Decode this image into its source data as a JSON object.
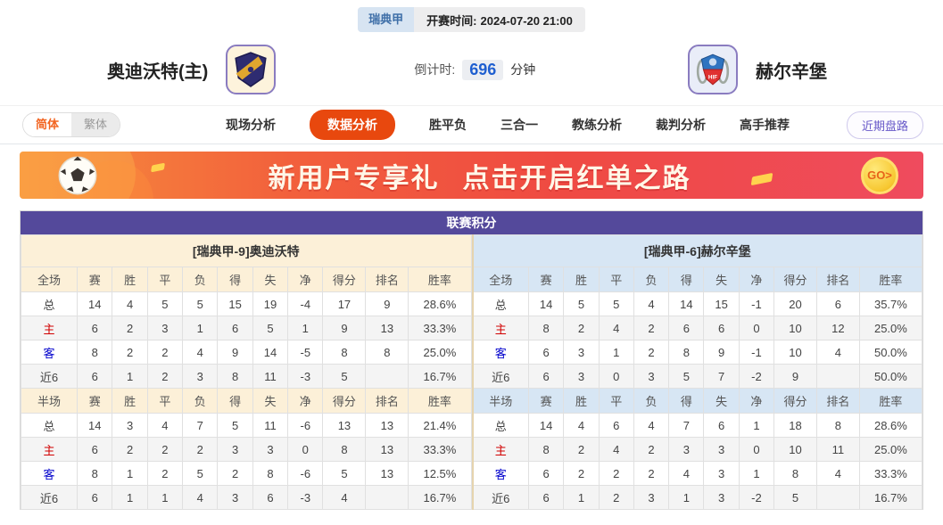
{
  "header": {
    "league": "瑞典甲",
    "kickoff_label": "开赛时间:",
    "kickoff_time": "2024-07-20 21:00",
    "home_team": "奥迪沃特(主)",
    "away_team": "赫尔辛堡",
    "countdown_label": "倒计时:",
    "countdown_value": "696",
    "countdown_unit": "分钟"
  },
  "nav": {
    "lang_simplified": "简体",
    "lang_traditional": "繁体",
    "tabs": [
      "现场分析",
      "数据分析",
      "胜平负",
      "三合一",
      "教练分析",
      "裁判分析",
      "高手推荐"
    ],
    "active_tab": "数据分析",
    "recent_button": "近期盘路"
  },
  "banner": {
    "text_left": "新用户专享礼",
    "text_right": "点击开启红单之路",
    "go_label": "GO>"
  },
  "colors": {
    "accent_orange": "#e8480e",
    "title_purple": "#54499b",
    "home_cream": "#fcf0d8",
    "away_blue": "#d7e6f4",
    "countdown_blue": "#1f5fd0"
  },
  "table": {
    "title": "联赛积分",
    "col_widths": [
      "12.5%",
      "7.8%",
      "7.8%",
      "7.8%",
      "7.8%",
      "7.8%",
      "7.8%",
      "7.8%",
      "9.5%",
      "9.5%",
      ""
    ],
    "panels": [
      {
        "side": "home",
        "header": "[瑞典甲-9]奥迪沃特",
        "sections": [
          {
            "columns": [
              "全场",
              "赛",
              "胜",
              "平",
              "负",
              "得",
              "失",
              "净",
              "得分",
              "排名",
              "胜率"
            ],
            "rows": [
              [
                "总",
                "14",
                "4",
                "5",
                "5",
                "15",
                "19",
                "-4",
                "17",
                "9",
                "28.6%"
              ],
              [
                "主",
                "6",
                "2",
                "3",
                "1",
                "6",
                "5",
                "1",
                "9",
                "13",
                "33.3%"
              ],
              [
                "客",
                "8",
                "2",
                "2",
                "4",
                "9",
                "14",
                "-5",
                "8",
                "8",
                "25.0%"
              ],
              [
                "近6",
                "6",
                "1",
                "2",
                "3",
                "8",
                "11",
                "-3",
                "5",
                "",
                "16.7%"
              ]
            ]
          },
          {
            "columns": [
              "半场",
              "赛",
              "胜",
              "平",
              "负",
              "得",
              "失",
              "净",
              "得分",
              "排名",
              "胜率"
            ],
            "rows": [
              [
                "总",
                "14",
                "3",
                "4",
                "7",
                "5",
                "11",
                "-6",
                "13",
                "13",
                "21.4%"
              ],
              [
                "主",
                "6",
                "2",
                "2",
                "2",
                "3",
                "3",
                "0",
                "8",
                "13",
                "33.3%"
              ],
              [
                "客",
                "8",
                "1",
                "2",
                "5",
                "2",
                "8",
                "-6",
                "5",
                "13",
                "12.5%"
              ],
              [
                "近6",
                "6",
                "1",
                "1",
                "4",
                "3",
                "6",
                "-3",
                "4",
                "",
                "16.7%"
              ]
            ]
          }
        ]
      },
      {
        "side": "away",
        "header": "[瑞典甲-6]赫尔辛堡",
        "sections": [
          {
            "columns": [
              "全场",
              "赛",
              "胜",
              "平",
              "负",
              "得",
              "失",
              "净",
              "得分",
              "排名",
              "胜率"
            ],
            "rows": [
              [
                "总",
                "14",
                "5",
                "5",
                "4",
                "14",
                "15",
                "-1",
                "20",
                "6",
                "35.7%"
              ],
              [
                "主",
                "8",
                "2",
                "4",
                "2",
                "6",
                "6",
                "0",
                "10",
                "12",
                "25.0%"
              ],
              [
                "客",
                "6",
                "3",
                "1",
                "2",
                "8",
                "9",
                "-1",
                "10",
                "4",
                "50.0%"
              ],
              [
                "近6",
                "6",
                "3",
                "0",
                "3",
                "5",
                "7",
                "-2",
                "9",
                "",
                "50.0%"
              ]
            ]
          },
          {
            "columns": [
              "半场",
              "赛",
              "胜",
              "平",
              "负",
              "得",
              "失",
              "净",
              "得分",
              "排名",
              "胜率"
            ],
            "rows": [
              [
                "总",
                "14",
                "4",
                "6",
                "4",
                "7",
                "6",
                "1",
                "18",
                "8",
                "28.6%"
              ],
              [
                "主",
                "8",
                "2",
                "4",
                "2",
                "3",
                "3",
                "0",
                "10",
                "11",
                "25.0%"
              ],
              [
                "客",
                "6",
                "2",
                "2",
                "2",
                "4",
                "3",
                "1",
                "8",
                "4",
                "33.3%"
              ],
              [
                "近6",
                "6",
                "1",
                "2",
                "3",
                "1",
                "3",
                "-2",
                "5",
                "",
                "16.7%"
              ]
            ]
          }
        ]
      }
    ]
  }
}
